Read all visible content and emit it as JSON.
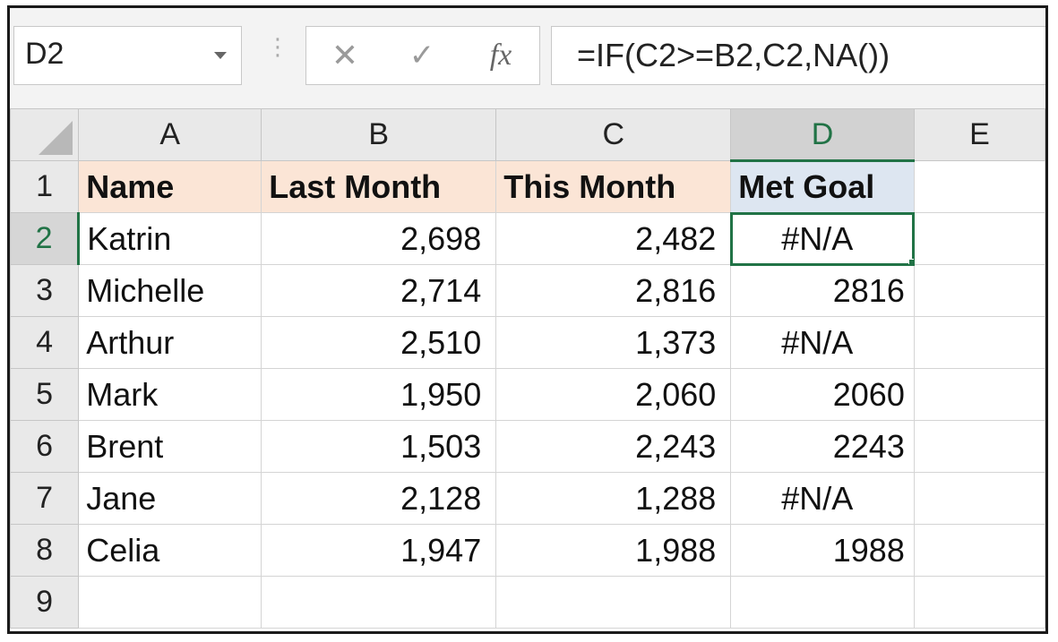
{
  "formula_bar": {
    "name_box": "D2",
    "cancel_icon": "close-icon",
    "enter_icon": "check-icon",
    "fx_label": "fx",
    "formula": "=IF(C2>=B2,C2,NA())"
  },
  "columns": [
    "A",
    "B",
    "C",
    "D",
    "E"
  ],
  "rows": [
    "1",
    "2",
    "3",
    "4",
    "5",
    "6",
    "7",
    "8",
    "9"
  ],
  "header": {
    "name": "Name",
    "last_month": "Last Month",
    "this_month": "This Month",
    "met_goal": "Met Goal"
  },
  "data": [
    {
      "name": "Katrin",
      "last": "2,698",
      "this": "2,482",
      "goal": "#N/A"
    },
    {
      "name": "Michelle",
      "last": "2,714",
      "this": "2,816",
      "goal": "2816"
    },
    {
      "name": "Arthur",
      "last": "2,510",
      "this": "1,373",
      "goal": "#N/A"
    },
    {
      "name": "Mark",
      "last": "1,950",
      "this": "2,060",
      "goal": "2060"
    },
    {
      "name": "Brent",
      "last": "1,503",
      "this": "2,243",
      "goal": "2243"
    },
    {
      "name": "Jane",
      "last": "2,128",
      "this": "1,288",
      "goal": "#N/A"
    },
    {
      "name": "Celia",
      "last": "1,947",
      "this": "1,988",
      "goal": "1988"
    }
  ],
  "colors": {
    "accent": "#217346",
    "header_peach": "#fbe5d6",
    "header_blue": "#dde6f1"
  }
}
